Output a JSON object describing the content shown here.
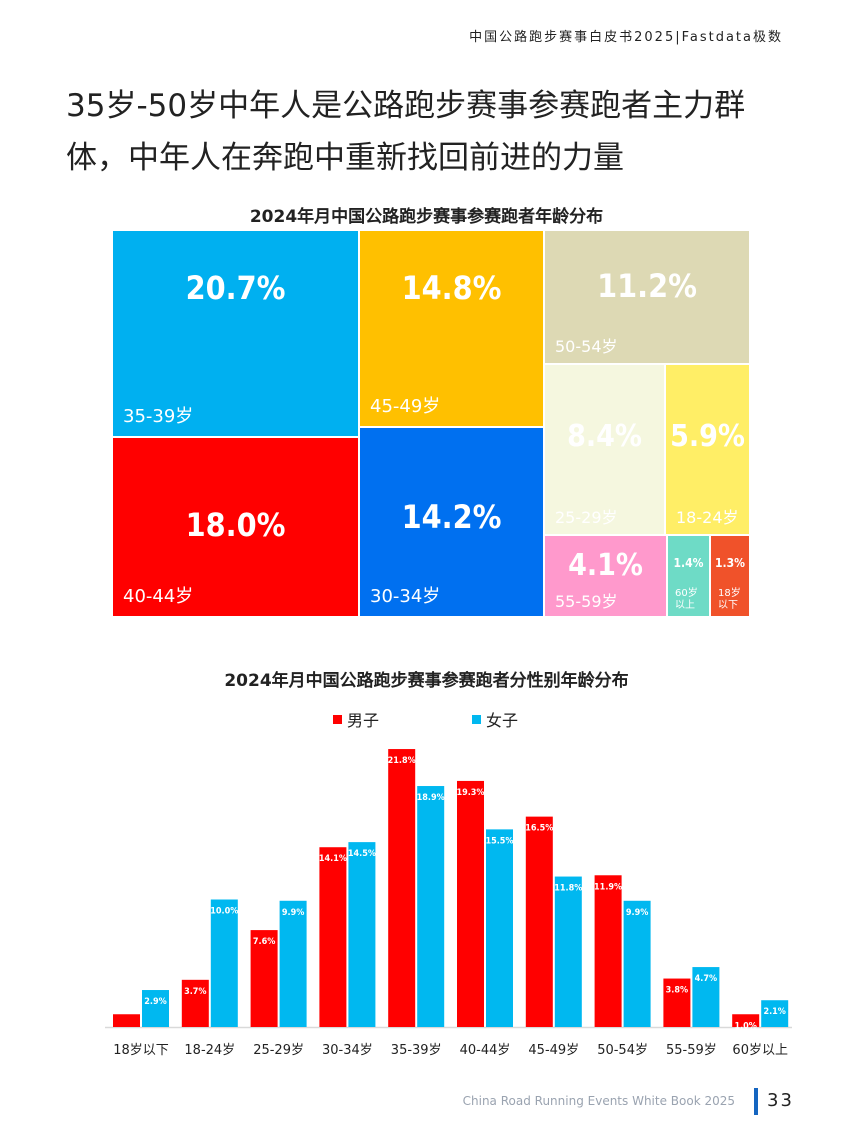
{
  "header": "中国公路跑步赛事白皮书2025|Fastdata极数",
  "title": "35岁-50岁中年人是公路跑步赛事参赛跑者主力群体，中年人在奔跑中重新找回前进的力量",
  "footer": {
    "text": "China Road Running Events White Book 2025",
    "page": "33"
  },
  "chart_data": [
    {
      "type": "treemap",
      "title": "2024年月中国公路跑步赛事参赛跑者年龄分布",
      "items": [
        {
          "label": "35-39岁",
          "value": "20.7%",
          "color": "#00b0f0"
        },
        {
          "label": "40-44岁",
          "value": "18.0%",
          "color": "#ff0000"
        },
        {
          "label": "45-49岁",
          "value": "14.8%",
          "color": "#ffc000"
        },
        {
          "label": "30-34岁",
          "value": "14.2%",
          "color": "#0070f0"
        },
        {
          "label": "50-54岁",
          "value": "11.2%",
          "color": "#ddd9b4"
        },
        {
          "label": "25-29岁",
          "value": "8.4%",
          "color": "#f5f7df"
        },
        {
          "label": "18-24岁",
          "value": "5.9%",
          "color": "#ffee66"
        },
        {
          "label": "55-59岁",
          "value": "4.1%",
          "color": "#ff99cc"
        },
        {
          "label": "60岁以上",
          "value": "1.4%",
          "color": "#6edbc6"
        },
        {
          "label": "18岁以下",
          "value": "1.3%",
          "color": "#f0522a"
        }
      ]
    },
    {
      "type": "bar",
      "title": "2024年月中国公路跑步赛事参赛跑者分性别年龄分布",
      "categories": [
        "18岁以下",
        "18-24岁",
        "25-29岁",
        "30-34岁",
        "35-39岁",
        "40-44岁",
        "45-49岁",
        "50-54岁",
        "55-59岁",
        "60岁以上"
      ],
      "series": [
        {
          "name": "男子",
          "color": "#ff0000",
          "values": [
            1.0,
            3.7,
            7.6,
            14.1,
            21.8,
            19.3,
            16.5,
            11.9,
            3.8,
            1.0
          ],
          "labels": [
            "",
            "3.7%",
            "7.6%",
            "14.1%",
            "21.8%",
            "19.3%",
            "16.5%",
            "11.9%",
            "3.8%",
            "1.0%"
          ]
        },
        {
          "name": "女子",
          "color": "#00b8f0",
          "values": [
            2.9,
            10.0,
            9.9,
            14.5,
            18.9,
            15.5,
            11.8,
            9.9,
            4.7,
            2.1
          ],
          "labels": [
            "2.9%",
            "10.0%",
            "9.9%",
            "14.5%",
            "18.9%",
            "15.5%",
            "11.8%",
            "9.9%",
            "4.7%",
            "2.1%"
          ]
        }
      ],
      "legend": "top",
      "grid": false
    }
  ]
}
